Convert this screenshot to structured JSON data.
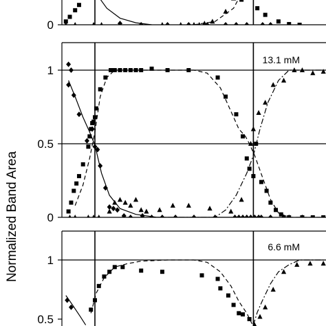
{
  "chart_data": [
    {
      "type": "scatter",
      "panel": "top (partially visible)",
      "ylabel": "Normalized Band Area",
      "yticks": [
        {
          "value": 0,
          "label": "0"
        }
      ],
      "ylim": [
        0,
        1.05
      ],
      "xlim": [
        0,
        100
      ],
      "vlines_x": [
        12.5,
        72.5
      ],
      "series": [
        {
          "marker": "square",
          "points": [
            [
              1.5,
              0.05
            ],
            [
              3,
              0.12
            ],
            [
              5,
              0.22
            ],
            [
              6.5,
              0.3
            ],
            [
              9,
              0.55
            ],
            [
              68,
              0.38
            ],
            [
              74,
              0.25
            ],
            [
              77,
              0.15
            ],
            [
              82,
              0.05
            ],
            [
              86,
              0.01
            ],
            [
              90,
              0.0
            ]
          ],
          "fit": [
            [
              7,
              0.8
            ],
            [
              12.5,
              0.5
            ],
            [
              17,
              0.25
            ],
            [
              22,
              0.1
            ],
            [
              28,
              0.03
            ],
            [
              34,
              0.0
            ]
          ],
          "fit_style": "solid"
        },
        {
          "marker": "triangle",
          "points": [
            [
              1.5,
              0.0
            ],
            [
              5,
              0.0
            ],
            [
              12,
              0.0
            ],
            [
              15,
              0.0
            ],
            [
              22,
              0.0
            ],
            [
              30,
              0.0
            ],
            [
              38,
              0.0
            ],
            [
              45,
              0.0
            ],
            [
              50,
              0.0
            ],
            [
              52,
              0.0
            ],
            [
              54,
              0.02
            ],
            [
              57,
              0.05
            ],
            [
              62,
              0.2
            ],
            [
              65,
              0.4
            ],
            [
              70,
              0.8
            ]
          ],
          "fit": [
            [
              50,
              0.0
            ],
            [
              58,
              0.05
            ],
            [
              65,
              0.25
            ],
            [
              69,
              0.55
            ],
            [
              72.5,
              0.9
            ]
          ],
          "fit_style": "dashed"
        },
        {
          "marker": "diamond",
          "points": [
            [
              22,
              0.02
            ],
            [
              30,
              0.0
            ],
            [
              40,
              0.0
            ],
            [
              48,
              0.0
            ],
            [
              55,
              0.0
            ],
            [
              62,
              0.0
            ],
            [
              66,
              0.0
            ],
            [
              70,
              0.0
            ],
            [
              76,
              0.0
            ],
            [
              79,
              0.0
            ]
          ],
          "fit": [],
          "fit_style": "none"
        }
      ]
    },
    {
      "type": "scatter",
      "panel": "middle",
      "annotation": "13.1 mM",
      "ylabel": "Normalized Band Area",
      "yticks": [
        {
          "value": 0,
          "label": "0"
        },
        {
          "value": 0.5,
          "label": "0.5"
        },
        {
          "value": 1,
          "label": "1"
        }
      ],
      "ylim": [
        0,
        1.05
      ],
      "xlim": [
        0,
        100
      ],
      "hlines_y": [
        0.5,
        1
      ],
      "vlines_x": [
        12.5,
        72.5
      ],
      "series": [
        {
          "marker": "diamond",
          "points": [
            [
              2.5,
              1.04
            ],
            [
              3.5,
              1.0
            ],
            [
              2.5,
              0.9
            ],
            [
              4.5,
              0.83
            ],
            [
              6.5,
              0.7
            ],
            [
              9.5,
              0.52
            ],
            [
              11.5,
              0.6
            ],
            [
              12.5,
              0.48
            ],
            [
              13.5,
              0.46
            ],
            [
              14.5,
              0.35
            ],
            [
              16.5,
              0.2
            ],
            [
              18,
              0.07
            ],
            [
              19.5,
              0.06
            ],
            [
              21,
              0.05
            ],
            [
              23.5,
              0.01
            ],
            [
              26,
              0.0
            ],
            [
              30.5,
              0.01
            ],
            [
              34,
              0.0
            ],
            [
              38,
              0.0
            ],
            [
              43,
              0.0
            ],
            [
              50,
              0.0
            ],
            [
              58,
              0.0
            ],
            [
              65.5,
              0.0
            ],
            [
              67,
              0.0
            ],
            [
              68.5,
              0.0
            ],
            [
              70,
              0.0
            ],
            [
              71.5,
              0.0
            ],
            [
              73,
              0.0
            ],
            [
              74.5,
              0.0
            ],
            [
              75.5,
              0.0
            ],
            [
              79,
              0.0
            ],
            [
              84,
              0.0
            ],
            [
              86,
              0.0
            ],
            [
              91,
              0.0
            ]
          ],
          "fit": [
            [
              2.5,
              0.93
            ],
            [
              5,
              0.82
            ],
            [
              8,
              0.68
            ],
            [
              10.5,
              0.58
            ],
            [
              12.5,
              0.49
            ],
            [
              15,
              0.3
            ],
            [
              18,
              0.15
            ],
            [
              22,
              0.06
            ],
            [
              28,
              0.02
            ],
            [
              36,
              0.0
            ],
            [
              60,
              0.0
            ],
            [
              70,
              0.0
            ],
            [
              76,
              0.0
            ]
          ],
          "fit_style": "solid"
        },
        {
          "marker": "square",
          "points": [
            [
              2.5,
              0.04
            ],
            [
              3.5,
              0.1
            ],
            [
              4.5,
              0.18
            ],
            [
              5.5,
              0.23
            ],
            [
              6.5,
              0.28
            ],
            [
              8,
              0.36
            ],
            [
              10,
              0.48
            ],
            [
              10.5,
              0.55
            ],
            [
              11,
              0.6
            ],
            [
              11.5,
              0.64
            ],
            [
              12,
              0.65
            ],
            [
              12.5,
              0.68
            ],
            [
              13,
              0.74
            ],
            [
              14.5,
              0.87
            ],
            [
              16.5,
              0.95
            ],
            [
              18.5,
              1.0
            ],
            [
              20,
              1.0
            ],
            [
              22,
              1.0
            ],
            [
              24,
              1.0
            ],
            [
              26,
              1.0
            ],
            [
              28,
              1.0
            ],
            [
              30,
              1.0
            ],
            [
              34,
              1.01
            ],
            [
              40,
              1.0
            ],
            [
              48,
              1.0
            ],
            [
              59,
              0.95
            ],
            [
              62,
              0.82
            ],
            [
              66,
              0.7
            ],
            [
              68.5,
              0.55
            ],
            [
              70,
              0.4
            ],
            [
              71,
              0.33
            ],
            [
              72.5,
              0.28
            ],
            [
              73.5,
              0.5
            ],
            [
              75.5,
              0.24
            ],
            [
              77.5,
              0.18
            ],
            [
              79,
              0.1
            ],
            [
              81,
              0.05
            ],
            [
              83,
              0.02
            ],
            [
              86,
              0.0
            ],
            [
              91,
              0.0
            ],
            [
              95,
              0.0
            ],
            [
              99,
              0.0
            ]
          ],
          "fit": [
            [
              5,
              0.08
            ],
            [
              8,
              0.22
            ],
            [
              10.5,
              0.4
            ],
            [
              12.5,
              0.58
            ],
            [
              14.5,
              0.82
            ],
            [
              17,
              0.95
            ],
            [
              20,
              1.0
            ],
            [
              30,
              1.0
            ],
            [
              44,
              1.0
            ],
            [
              50,
              1.0
            ],
            [
              55,
              0.98
            ],
            [
              60,
              0.88
            ],
            [
              64,
              0.72
            ],
            [
              67,
              0.6
            ],
            [
              69.5,
              0.55
            ],
            [
              71,
              0.5
            ],
            [
              73,
              0.42
            ],
            [
              76,
              0.27
            ],
            [
              79,
              0.12
            ],
            [
              82,
              0.03
            ],
            [
              86,
              0.0
            ],
            [
              99,
              0.0
            ]
          ],
          "fit_style": "dashed"
        },
        {
          "marker": "triangle",
          "points": [
            [
              3,
              0.0
            ],
            [
              5,
              0.0
            ],
            [
              10,
              0.0
            ],
            [
              12,
              0.0
            ],
            [
              14,
              0.0
            ],
            [
              18,
              0.04
            ],
            [
              20,
              0.1
            ],
            [
              22,
              0.12
            ],
            [
              24,
              0.1
            ],
            [
              26,
              0.08
            ],
            [
              28,
              0.12
            ],
            [
              30,
              0.05
            ],
            [
              32,
              0.04
            ],
            [
              37,
              0.05
            ],
            [
              42,
              0.08
            ],
            [
              48,
              0.08
            ],
            [
              56,
              0.06
            ],
            [
              64,
              0.04
            ],
            [
              68,
              0.12
            ],
            [
              71.5,
              0.5
            ],
            [
              72.5,
              0.6
            ],
            [
              74.5,
              0.71
            ],
            [
              77,
              0.78
            ],
            [
              80,
              0.9
            ],
            [
              84,
              0.93
            ],
            [
              88,
              1.0
            ],
            [
              91,
              1.0
            ],
            [
              95,
              0.98
            ],
            [
              99,
              0.99
            ]
          ],
          "fit": [
            [
              36,
              0.0
            ],
            [
              50,
              0.0
            ],
            [
              58,
              0.0
            ],
            [
              62,
              0.05
            ],
            [
              66,
              0.15
            ],
            [
              70,
              0.3
            ],
            [
              72.5,
              0.42
            ],
            [
              75,
              0.6
            ],
            [
              78,
              0.78
            ],
            [
              82,
              0.93
            ],
            [
              86,
              1.0
            ],
            [
              99,
              1.0
            ]
          ],
          "fit_style": "dash-dot"
        }
      ]
    },
    {
      "type": "scatter",
      "panel": "bottom (partially visible)",
      "annotation": "6.6 mM",
      "ylabel": "Normalized Band Area",
      "yticks": [
        {
          "value": 0.5,
          "label": "0.5"
        },
        {
          "value": 1,
          "label": "1"
        }
      ],
      "ylim": [
        0.42,
        1.12
      ],
      "xlim": [
        0,
        100
      ],
      "hlines_y": [
        1
      ],
      "vlines_x": [
        12.5,
        72.5
      ],
      "series": [
        {
          "marker": "diamond",
          "points": [
            [
              2,
              0.66
            ],
            [
              3.5,
              0.6
            ]
          ],
          "fit": [
            [
              1.5,
              0.7
            ],
            [
              4,
              0.62
            ],
            [
              7,
              0.52
            ],
            [
              9,
              0.45
            ]
          ],
          "fit_style": "solid"
        },
        {
          "marker": "square",
          "points": [
            [
              11,
              0.58
            ],
            [
              12.5,
              0.66
            ],
            [
              14,
              0.78
            ],
            [
              16,
              0.86
            ],
            [
              18,
              0.9
            ],
            [
              20,
              0.94
            ],
            [
              23,
              0.94
            ],
            [
              30,
              0.91
            ],
            [
              38,
              0.9
            ],
            [
              53,
              0.87
            ],
            [
              59,
              0.84
            ],
            [
              60,
              0.76
            ],
            [
              63,
              0.7
            ],
            [
              65,
              0.62
            ],
            [
              67,
              0.55
            ],
            [
              68.5,
              0.54
            ],
            [
              71,
              0.5
            ]
          ],
          "fit": [
            [
              11,
              0.55
            ],
            [
              13,
              0.72
            ],
            [
              16,
              0.85
            ],
            [
              20,
              0.94
            ],
            [
              25,
              0.97
            ],
            [
              30,
              0.99
            ],
            [
              40,
              1.0
            ],
            [
              50,
              1.0
            ],
            [
              55,
              0.98
            ],
            [
              60,
              0.9
            ],
            [
              64,
              0.78
            ],
            [
              67,
              0.65
            ],
            [
              70,
              0.55
            ],
            [
              72,
              0.46
            ]
          ],
          "fit_style": "dashed"
        },
        {
          "marker": "triangle",
          "points": [
            [
              73,
              0.45
            ],
            [
              75,
              0.52
            ],
            [
              77,
              0.6
            ],
            [
              80,
              0.75
            ],
            [
              84,
              0.9
            ],
            [
              89,
              0.96
            ],
            [
              94,
              0.97
            ],
            [
              99,
              0.97
            ]
          ],
          "fit": [
            [
              72.5,
              0.45
            ],
            [
              74,
              0.56
            ],
            [
              76,
              0.66
            ],
            [
              79,
              0.8
            ],
            [
              82,
              0.9
            ],
            [
              86,
              0.96
            ],
            [
              90,
              1.0
            ],
            [
              99,
              1.0
            ]
          ],
          "fit_style": "dash-dot"
        }
      ]
    }
  ]
}
